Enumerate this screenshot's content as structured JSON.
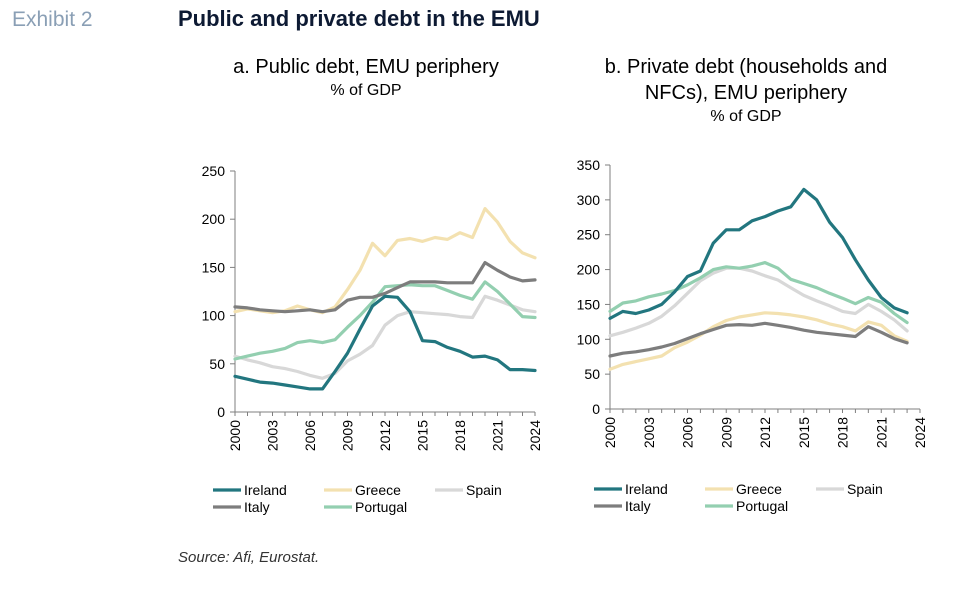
{
  "header": {
    "exhibit": "Exhibit 2",
    "title": "Public and private debt in the EMU"
  },
  "source": "Source: Afi, Eurostat.",
  "chart_data": [
    {
      "type": "line",
      "title": "a. Public debt, EMU periphery",
      "subtitle": "% of GDP",
      "xlabel": "",
      "ylabel": "",
      "xlim": [
        2000,
        2024
      ],
      "ylim": [
        0,
        250
      ],
      "x_ticks": [
        "2000",
        "2003",
        "2006",
        "2009",
        "2012",
        "2015",
        "2018",
        "2021",
        "2024"
      ],
      "y_ticks": [
        "0",
        "50",
        "100",
        "150",
        "200",
        "250"
      ],
      "grid": false,
      "legend": "bottom",
      "x": [
        2000,
        2001,
        2002,
        2003,
        2004,
        2005,
        2006,
        2007,
        2008,
        2009,
        2010,
        2011,
        2012,
        2013,
        2014,
        2015,
        2016,
        2017,
        2018,
        2019,
        2020,
        2021,
        2022,
        2023,
        2024
      ],
      "series": [
        {
          "name": "Ireland",
          "color": "#22767f",
          "values": [
            37,
            34,
            31,
            30,
            28,
            26,
            24,
            24,
            42,
            61,
            86,
            110,
            120,
            119,
            104,
            74,
            73,
            67,
            63,
            57,
            58,
            54,
            44,
            44,
            43
          ]
        },
        {
          "name": "Greece",
          "color": "#f3e1b0",
          "values": [
            104,
            107,
            105,
            103,
            105,
            110,
            106,
            103,
            109,
            127,
            147,
            175,
            162,
            178,
            180,
            177,
            181,
            179,
            186,
            181,
            211,
            197,
            177,
            165,
            160
          ]
        },
        {
          "name": "Spain",
          "color": "#d8d8d8",
          "values": [
            58,
            54,
            51,
            47,
            45,
            42,
            38,
            35,
            40,
            53,
            60,
            69,
            90,
            100,
            104,
            103,
            102,
            101,
            99,
            98,
            120,
            116,
            111,
            106,
            104
          ]
        },
        {
          "name": "Italy",
          "color": "#7d7d7d",
          "values": [
            109,
            108,
            106,
            105,
            104,
            105,
            106,
            104,
            106,
            116,
            119,
            119,
            123,
            129,
            135,
            135,
            135,
            134,
            134,
            134,
            155,
            147,
            140,
            136,
            137
          ]
        },
        {
          "name": "Portugal",
          "color": "#93cfb0",
          "values": [
            55,
            58,
            61,
            63,
            66,
            72,
            74,
            72,
            75,
            88,
            100,
            114,
            130,
            131,
            132,
            131,
            131,
            126,
            121,
            117,
            135,
            125,
            112,
            99,
            98
          ]
        }
      ]
    },
    {
      "type": "line",
      "title": "b. Private debt (households and NFCs), EMU periphery",
      "title_lines": [
        "b. Private debt (households and",
        "NFCs), EMU periphery"
      ],
      "subtitle": "% of GDP",
      "xlabel": "",
      "ylabel": "",
      "xlim": [
        2000,
        2024
      ],
      "ylim": [
        0,
        350
      ],
      "x_ticks": [
        "2000",
        "2003",
        "2006",
        "2009",
        "2012",
        "2015",
        "2018",
        "2021",
        "2024"
      ],
      "y_ticks": [
        "0",
        "50",
        "100",
        "150",
        "200",
        "250",
        "300",
        "350"
      ],
      "grid": false,
      "legend": "bottom",
      "x": [
        2000,
        2001,
        2002,
        2003,
        2004,
        2005,
        2006,
        2007,
        2008,
        2009,
        2010,
        2011,
        2012,
        2013,
        2014,
        2015,
        2016,
        2017,
        2018,
        2019,
        2020,
        2021,
        2022,
        2023
      ],
      "series": [
        {
          "name": "Ireland",
          "color": "#22767f",
          "values": [
            130,
            140,
            137,
            142,
            150,
            168,
            190,
            198,
            238,
            257,
            257,
            270,
            276,
            284,
            290,
            315,
            300,
            268,
            246,
            214,
            185,
            160,
            145,
            138
          ]
        },
        {
          "name": "Greece",
          "color": "#f3e1b0",
          "values": [
            57,
            64,
            68,
            72,
            76,
            88,
            96,
            106,
            118,
            127,
            132,
            135,
            138,
            137,
            135,
            132,
            128,
            122,
            118,
            112,
            125,
            120,
            105,
            97
          ]
        },
        {
          "name": "Spain",
          "color": "#d8d8d8",
          "values": [
            105,
            110,
            116,
            123,
            133,
            148,
            166,
            184,
            195,
            202,
            202,
            198,
            191,
            185,
            174,
            163,
            155,
            148,
            140,
            137,
            150,
            140,
            128,
            112
          ]
        },
        {
          "name": "Italy",
          "color": "#7d7d7d",
          "values": [
            76,
            80,
            82,
            85,
            89,
            94,
            101,
            108,
            114,
            120,
            121,
            120,
            123,
            120,
            117,
            113,
            110,
            108,
            106,
            104,
            118,
            110,
            101,
            95
          ]
        },
        {
          "name": "Portugal",
          "color": "#93cfb0",
          "values": [
            140,
            152,
            155,
            161,
            165,
            170,
            178,
            188,
            200,
            204,
            202,
            205,
            210,
            202,
            186,
            180,
            174,
            166,
            159,
            151,
            160,
            153,
            137,
            124
          ]
        }
      ]
    }
  ]
}
